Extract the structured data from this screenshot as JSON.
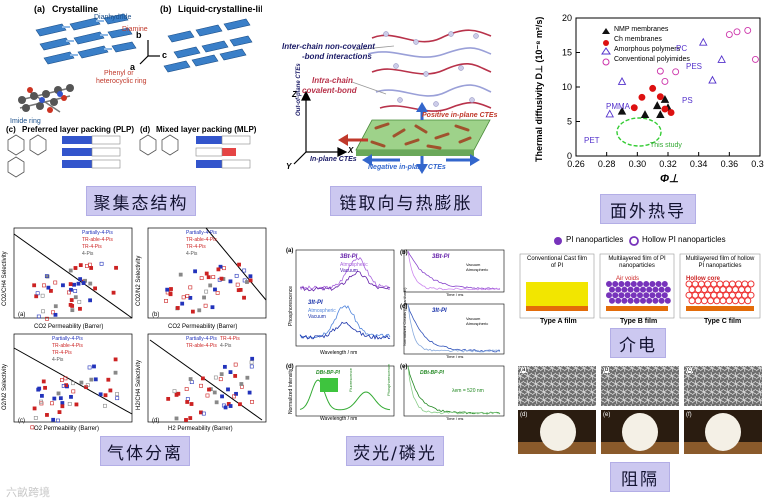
{
  "captions": {
    "aggregate": "聚集态结构",
    "chain": "链取向与热膨胀",
    "thermal": "面外热导",
    "gas": "气体分离",
    "fluor": "荧光/磷光",
    "dielectric": "介电",
    "barrier": "阻隔"
  },
  "aggregate": {
    "a_label": "(a)",
    "a_title": "Crystalline",
    "b_label": "(b)",
    "b_title": "Liquid-crystalline-like",
    "dianhydride": "Dianhydride",
    "diamine": "Diamine",
    "phenyl": "Phenyl or",
    "heterocyclic": "heterocyclic ring",
    "imide": "Imide ring",
    "ax_b": "b",
    "ax_c": "c",
    "ax_a": "a",
    "c_label": "(c)",
    "c_title": "Preferred layer packing (PLP)",
    "d_label": "(d)",
    "d_title": "Mixed layer packing (MLP)",
    "c_dianhydride": "Dianhydride",
    "c_diamine": "Diamine"
  },
  "chain": {
    "noncovalent_1": "Inter-chain non-covalent",
    "noncovalent_2": "-bond interactions",
    "covalent_1": "Intra-chain",
    "covalent_2": "covalent-bond",
    "axis_z": "Z",
    "axis_x": "X",
    "axis_y": "Y",
    "oop": "Out-of-plane CTEs",
    "inplane": "In-plane CTEs",
    "positive": "Positive in-plane CTEs",
    "negative": "Negative in-plane CTEs"
  },
  "thermal": {
    "legend": [
      "NMP membranes",
      "Ch membranes",
      "Amorphous polymers",
      "Conventional polyimides"
    ],
    "ylabel": "Thermal diffusivity D⊥ (10⁻⁸ m²/s)",
    "xlabel": "Φ⊥",
    "annotations": [
      "PC",
      "PES",
      "PS",
      "PMMA",
      "PET",
      "This study"
    ],
    "colors": {
      "nmp": "#111111",
      "ch": "#dd1111",
      "amorphous": "#5533cc",
      "conventional": "#cc33aa",
      "ellipse": "#33cc33"
    }
  },
  "chart_data": {
    "type": "scatter",
    "xlim": [
      0.26,
      0.38
    ],
    "ylim": [
      0,
      20
    ],
    "x_ticks": [
      "0.26",
      "0.28",
      "0.30",
      "0.32",
      "0.34",
      "0.36",
      "0.38"
    ],
    "y_ticks": [
      "0",
      "5",
      "10",
      "15",
      "20"
    ],
    "xlabel": "Φ⊥",
    "ylabel": "Thermal diffusivity D⊥ (10⁻⁸ m²/s)",
    "series": [
      {
        "name": "NMP membranes",
        "marker": "filled-triangle",
        "points": [
          [
            0.29,
            6.5
          ],
          [
            0.305,
            6.0
          ],
          [
            0.313,
            7.3
          ],
          [
            0.318,
            8.2
          ],
          [
            0.32,
            7.0
          ],
          [
            0.315,
            6.0
          ]
        ]
      },
      {
        "name": "Ch membranes",
        "marker": "filled-circle",
        "points": [
          [
            0.298,
            7.0
          ],
          [
            0.303,
            8.5
          ],
          [
            0.31,
            9.8
          ],
          [
            0.315,
            8.6
          ],
          [
            0.318,
            6.8
          ],
          [
            0.322,
            6.3
          ]
        ]
      },
      {
        "name": "Amorphous polymers",
        "marker": "open-triangle",
        "points": [
          [
            0.282,
            6.1
          ],
          [
            0.29,
            10.8
          ],
          [
            0.343,
            16.5
          ],
          [
            0.355,
            14.0
          ],
          [
            0.349,
            11.0
          ]
        ]
      },
      {
        "name": "Conventional polyimides",
        "marker": "open-circle",
        "points": [
          [
            0.315,
            12.3
          ],
          [
            0.318,
            10.8
          ],
          [
            0.325,
            12.2
          ],
          [
            0.36,
            17.6
          ],
          [
            0.365,
            18.0
          ],
          [
            0.372,
            18.2
          ],
          [
            0.377,
            14.0
          ]
        ]
      }
    ]
  },
  "gas": {
    "legend": [
      "Partially-4-Pis",
      "TR-able-4-Pis",
      "TR-4-Pis",
      "4-Pis"
    ],
    "panel_a": {
      "label": "(a)",
      "ylabel": "CO2/CH4 Selectivity",
      "xlabel": "CO2 Permeability (Barrer)"
    },
    "panel_b": {
      "label": "(b)",
      "ylabel": "CO2/N2 Selectivity",
      "xlabel": "CO2 Permeability (Barrer)"
    },
    "panel_c": {
      "label": "(c)",
      "ylabel": "O2/N2 Selectivity",
      "xlabel": "O2 Permeability (Barrer)"
    },
    "panel_d": {
      "label": "(d)",
      "ylabel": "H2/CH4 Selectivity",
      "xlabel": "H2 Permeability (Barrer)"
    }
  },
  "fluor": {
    "a_label": "(a)",
    "a_title": "3Bt-PI",
    "a2_title": "3It-PI",
    "legend_atm": "Atmospheric",
    "legend_vac": "Vacuum",
    "a_ylabel": "Phosphorescence",
    "a_xlabel": "Wavelength / nm",
    "b_label": "(b)",
    "b_title": "3Bt-PI",
    "c_label": "(c)",
    "c_title": "3It-PI",
    "bc_xlabel": "Time / ms",
    "bc_ylabel": "Normalized Counts (Logarithmic)",
    "d_label": "(d)",
    "d_title": "DBt-BP-PI",
    "d_ylabel": "Normalized Intensity",
    "d_xlabel": "Wavelength / nm",
    "d_fl": "Fluorescence",
    "d_ph": "Phosphorescence",
    "e_label": "(e)",
    "e_title": "DBt-BP-PI",
    "e_lambda": "λem = 520 nm",
    "e_xlabel": "Time / ms"
  },
  "dielectric": {
    "legend_solid": "PI nanoparticles",
    "legend_hollow": "Hollow PI nanoparticles",
    "filmA_title": "Conventional Cast film of PI",
    "filmB_title": "Multilayered film of PI nanoparticles",
    "filmC_title": "Multilayered film of hollow PI nanoparticles",
    "air_voids": "Air voids",
    "hollow_core": "Hollow core",
    "typeA": "Type A film",
    "typeB": "Type B film",
    "typeC": "Type C film",
    "colors": {
      "particle": "#7733bb",
      "film": "#f2e600",
      "substrate": "#e36c0a",
      "hollow": "#ee3333"
    }
  },
  "barrier": {
    "labels": [
      "(a)",
      "(b)",
      "(c)",
      "(d)",
      "(e)",
      "(f)"
    ]
  },
  "watermark": "六畝跨境"
}
